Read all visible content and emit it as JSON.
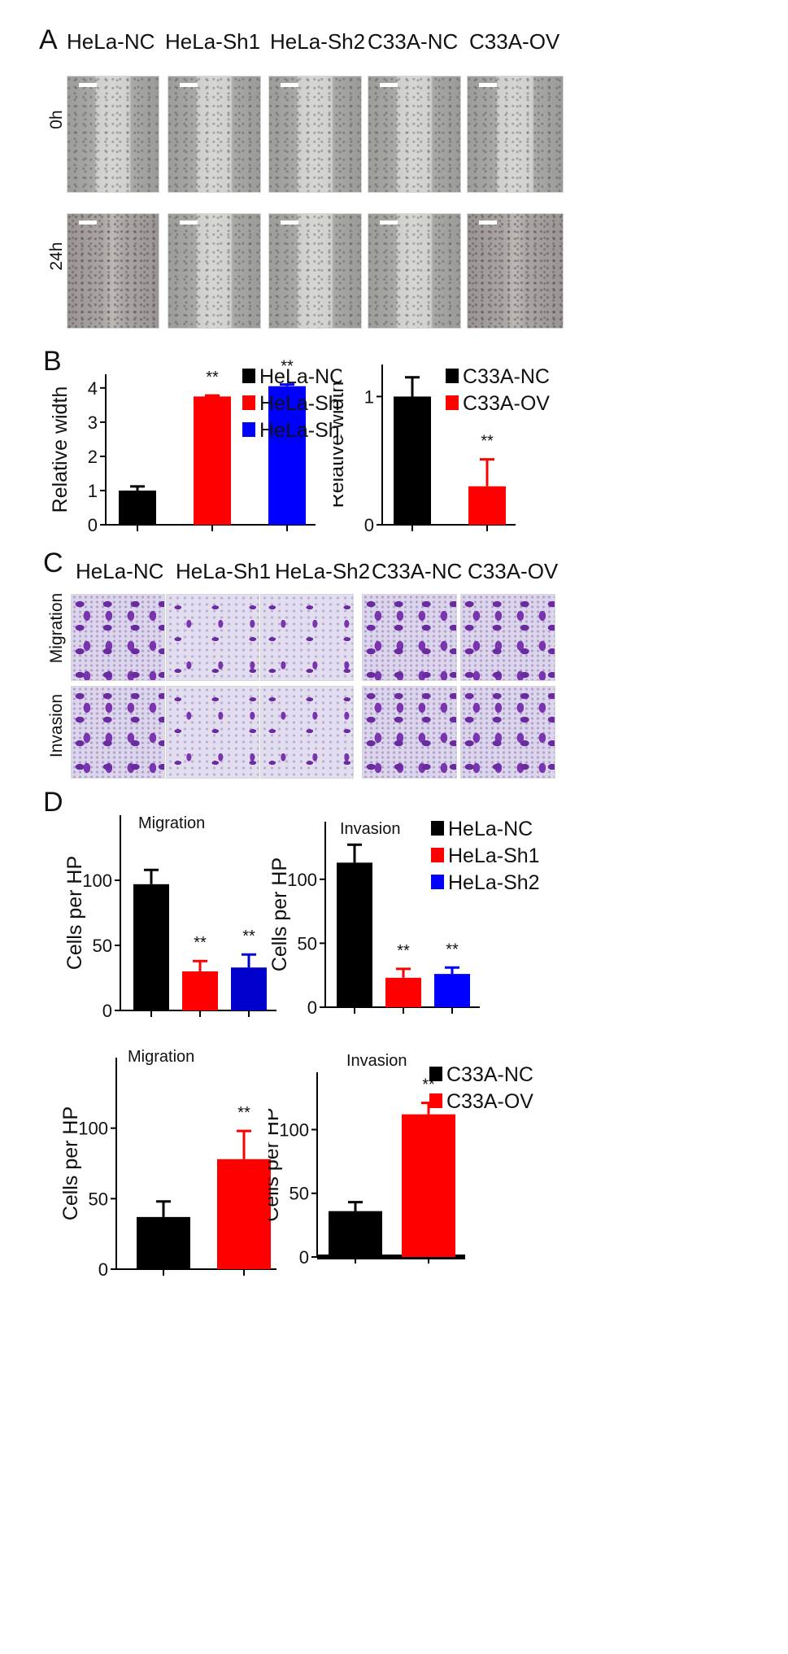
{
  "panels": {
    "A": "A",
    "B": "B",
    "C": "C",
    "D": "D"
  },
  "groups": [
    "HeLa-NC",
    "HeLa-Sh1",
    "HeLa-Sh2",
    "C33A-NC",
    "C33A-OV"
  ],
  "panel_a": {
    "rows": [
      "0h",
      "24h"
    ]
  },
  "panel_c": {
    "rows": [
      "Migration",
      "Invasion"
    ]
  },
  "colors": {
    "black": "#000000",
    "red": "#ff0000",
    "blue": "#0000ff",
    "darkblue": "#0000cc"
  },
  "chart_data": [
    {
      "id": "B1",
      "type": "bar",
      "ylabel": "Relative width",
      "ylim": [
        0,
        4.4
      ],
      "yticks": [
        "0",
        "1",
        "2",
        "3",
        "4"
      ],
      "categories": [
        "HeLa-NC",
        "HeLa-Sh1",
        "HeLa-Sh2"
      ],
      "values": [
        1.0,
        3.75,
        4.05
      ],
      "errors": [
        0.12,
        0.03,
        0.05
      ],
      "colors": [
        "#000000",
        "#ff0000",
        "#0000ff"
      ],
      "annotations": [
        "",
        "**",
        "**"
      ],
      "legend": [
        "HeLa-NC",
        "HeLa-Sh1",
        "HeLa-Sh2"
      ]
    },
    {
      "id": "B2",
      "type": "bar",
      "ylabel": "Relative width",
      "ylim": [
        0,
        1.25
      ],
      "yticks": [
        "0",
        "1"
      ],
      "categories": [
        "C33A-NC",
        "C33A-OV"
      ],
      "values": [
        1.0,
        0.3
      ],
      "errors": [
        0.15,
        0.21
      ],
      "colors": [
        "#000000",
        "#ff0000"
      ],
      "annotations": [
        "",
        "**"
      ],
      "legend": [
        "C33A-NC",
        "C33A-OV"
      ]
    },
    {
      "id": "D1",
      "type": "bar",
      "title": "Migration",
      "ylabel": "Cells per HP",
      "ylim": [
        0,
        150
      ],
      "yticks": [
        "0",
        "50",
        "100"
      ],
      "categories": [
        "HeLa-NC",
        "HeLa-Sh1",
        "HeLa-Sh2"
      ],
      "values": [
        97,
        30,
        33
      ],
      "errors": [
        11,
        8,
        10
      ],
      "colors": [
        "#000000",
        "#ff0000",
        "#0000cc"
      ],
      "annotations": [
        "",
        "**",
        "**"
      ]
    },
    {
      "id": "D2",
      "type": "bar",
      "title": "Invasion",
      "ylabel": "Cells per HP",
      "ylim": [
        0,
        145
      ],
      "yticks": [
        "0",
        "50",
        "100"
      ],
      "categories": [
        "HeLa-NC",
        "HeLa-Sh1",
        "HeLa-Sh2"
      ],
      "values": [
        113,
        23,
        26
      ],
      "errors": [
        14,
        7,
        5
      ],
      "colors": [
        "#000000",
        "#ff0000",
        "#0000ff"
      ],
      "annotations": [
        "",
        "**",
        "**"
      ],
      "legend": [
        "HeLa-NC",
        "HeLa-Sh1",
        "HeLa-Sh2"
      ]
    },
    {
      "id": "D3",
      "type": "bar",
      "title": "Migration",
      "ylabel": "Cells per HP",
      "ylim": [
        0,
        150
      ],
      "yticks": [
        "0",
        "50",
        "100"
      ],
      "categories": [
        "C33A-NC",
        "C33A-OV"
      ],
      "values": [
        37,
        78
      ],
      "errors": [
        11,
        20
      ],
      "colors": [
        "#000000",
        "#ff0000"
      ],
      "annotations": [
        "",
        "**"
      ]
    },
    {
      "id": "D4",
      "type": "bar",
      "title": "Invasion",
      "ylabel": "Cells per HP",
      "ylim": [
        0,
        145
      ],
      "yticks": [
        "0",
        "50",
        "100"
      ],
      "categories": [
        "C33A-NC",
        "C33A-OV"
      ],
      "values": [
        36,
        112
      ],
      "errors": [
        7,
        9
      ],
      "colors": [
        "#000000",
        "#ff0000"
      ],
      "annotations": [
        "",
        "**"
      ],
      "legend": [
        "C33A-NC",
        "C33A-OV"
      ]
    }
  ]
}
